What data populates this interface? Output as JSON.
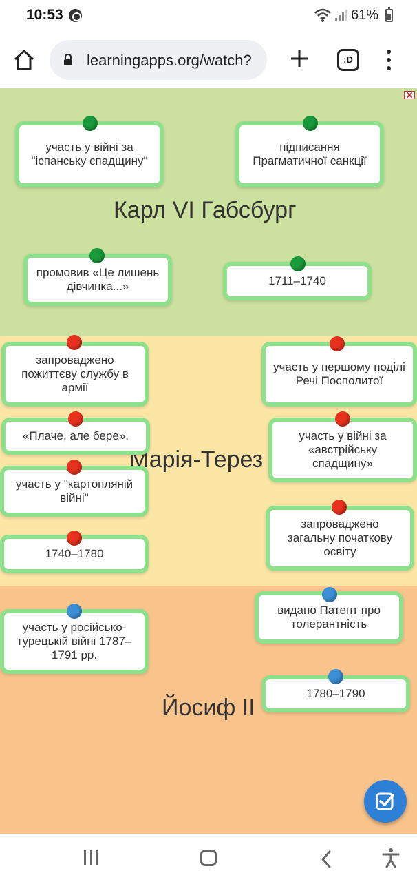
{
  "status": {
    "time": "10:53",
    "battery": "61%"
  },
  "browser": {
    "url": "learningapps.org/watch?",
    "tabs_label": ":D"
  },
  "zones": {
    "karl": {
      "title": "Карл VI Габсбург",
      "cards": [
        "участь у війні за \"іспанську спадщину\"",
        "підписання Прагматичної санкції",
        "промовив «Це лишень дівчинка...»",
        "1711–1740"
      ]
    },
    "maria": {
      "title": "Марія-Терез",
      "cards": [
        "запроваджено пожиттєву службу в армії",
        "участь у першому поділі Речі Посполитої",
        "«Плаче, але бере».",
        "участь у війні за «австрійську спадщину»",
        "участь у \"картопляній війні\"",
        "запроваджено загальну початкову освіту",
        "1740–1780"
      ]
    },
    "josef": {
      "title": "Йосиф II",
      "cards": [
        "видано Патент про толерантність",
        "участь у російсько-турецькій війні 1787–1791 рр.",
        "1780–1790"
      ]
    }
  },
  "colors": {
    "zone_green": "#cce0a0",
    "zone_yellow": "#fbe6a6",
    "zone_orange": "#f9c48c",
    "card_border": "#8ee08c",
    "pin_green": "#1a9a3a",
    "pin_red": "#e8321e",
    "pin_blue": "#3c8fd6",
    "fab": "#2e7fd6"
  },
  "icons": {
    "home": "home-icon",
    "lock": "lock-icon",
    "new_tab": "plus-icon",
    "menu": "more-vert-icon",
    "check": "check-icon",
    "fullscreen": "fullscreen-exit-icon"
  }
}
